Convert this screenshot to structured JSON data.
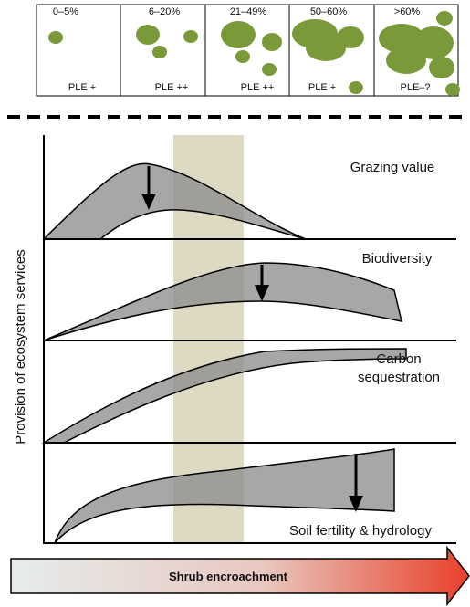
{
  "boxes": [
    {
      "cover": "0–5%",
      "ple": "PLE +"
    },
    {
      "cover": "6–20%",
      "ple": "PLE ++"
    },
    {
      "cover": "21–49%",
      "ple": "PLE ++"
    },
    {
      "cover": "50–60%",
      "ple": "PLE +"
    },
    {
      "cover": ">60%",
      "ple": "PLE–?"
    }
  ],
  "panels": [
    {
      "title": [
        "Grazing value"
      ]
    },
    {
      "title": [
        "Biodiversity"
      ]
    },
    {
      "title": [
        "Carbon",
        "sequestration"
      ]
    },
    {
      "title": [
        "Soil fertility & hydrology"
      ]
    }
  ],
  "y_axis_label": "Provision of ecosystem services",
  "arrow_label": "Shrub encroachment"
}
